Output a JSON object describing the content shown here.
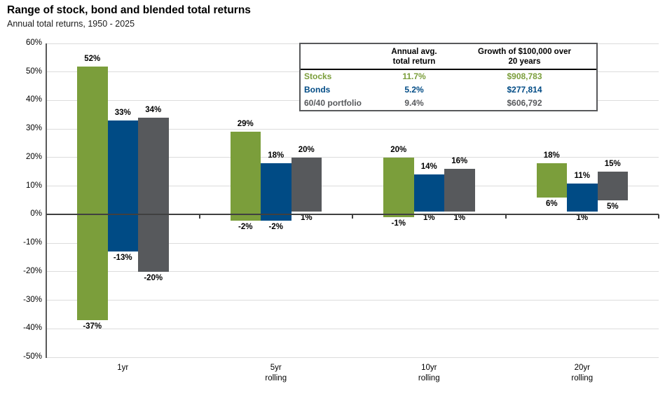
{
  "page": {
    "title": "Range of stock, bond and blended total returns",
    "subtitle": "Annual total returns, 1950 - 2025"
  },
  "chart_data": {
    "type": "bar",
    "variant": "floating-range-columns",
    "title": "Range of stock, bond and blended total returns",
    "subtitle": "Annual total returns, 1950 - 2025",
    "categories": [
      "1yr",
      "5yr\nrolling",
      "10yr\nrolling",
      "20yr\nrolling"
    ],
    "y_axis": {
      "min": -50,
      "max": 60,
      "step": 10,
      "suffix": "%"
    },
    "grid": true,
    "legend_position": "none",
    "label_suffix": "%",
    "series": [
      {
        "name": "Stocks",
        "color": "#7b9e3b",
        "max": [
          52,
          29,
          20,
          18
        ],
        "min": [
          -37,
          -2,
          -1,
          6
        ]
      },
      {
        "name": "Bonds",
        "color": "#004b85",
        "max": [
          33,
          18,
          14,
          11
        ],
        "min": [
          -13,
          -2,
          1,
          1
        ]
      },
      {
        "name": "60/40 portfolio",
        "color": "#57595c",
        "max": [
          34,
          20,
          16,
          15
        ],
        "min": [
          -20,
          1,
          1,
          5
        ]
      }
    ]
  },
  "table": {
    "col_headers": [
      "Annual avg.\ntotal return",
      "Growth of $100,000 over\n20 years"
    ],
    "rows": [
      {
        "label": "Stocks",
        "avg": "11.7%",
        "growth": "$908,783",
        "color": "#7b9e3b"
      },
      {
        "label": "Bonds",
        "avg": "5.2%",
        "growth": "$277,814",
        "color": "#004b85"
      },
      {
        "label": "60/40 portfolio",
        "avg": "9.4%",
        "growth": "$606,792",
        "color": "#57595c"
      }
    ]
  }
}
